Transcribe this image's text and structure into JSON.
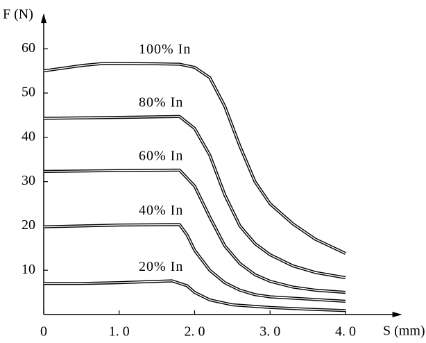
{
  "chart_data": {
    "type": "line",
    "ylabel": "F (N)",
    "xlabel": "S (mm)",
    "xlim": [
      0,
      4.75
    ],
    "ylim": [
      0,
      68
    ],
    "xticks": [
      0,
      {
        "value": 1,
        "label": "1. 0"
      },
      {
        "value": 2,
        "label": "2. 0"
      },
      {
        "value": 3,
        "label": "3. 0"
      },
      {
        "value": 4,
        "label": "4. 0"
      }
    ],
    "yticks": [
      10,
      20,
      30,
      40,
      50,
      60
    ],
    "series": [
      {
        "name": "100% In",
        "color": "#000000",
        "x": [
          0,
          0.5,
          0.8,
          1.5,
          1.8,
          2.0,
          2.2,
          2.4,
          2.6,
          2.8,
          3.0,
          3.3,
          3.6,
          4.0
        ],
        "values": [
          55,
          56.2,
          56.7,
          56.6,
          56.5,
          55.8,
          53.5,
          47,
          38,
          30,
          25,
          20.5,
          17,
          13.8
        ]
      },
      {
        "name": "80% In",
        "color": "#000000",
        "x": [
          0,
          1.0,
          1.8,
          2.0,
          2.2,
          2.4,
          2.6,
          2.8,
          3.0,
          3.3,
          3.6,
          4.0
        ],
        "values": [
          44.3,
          44.5,
          44.7,
          42,
          36,
          27,
          20,
          16,
          13.5,
          11,
          9.5,
          8.3
        ]
      },
      {
        "name": "60% In",
        "color": "#000000",
        "x": [
          0,
          1.0,
          1.8,
          2.0,
          2.2,
          2.4,
          2.6,
          2.8,
          3.0,
          3.3,
          3.6,
          4.0
        ],
        "values": [
          32.3,
          32.5,
          32.6,
          29,
          22,
          15.5,
          11.5,
          9,
          7.5,
          6.2,
          5.5,
          5
        ]
      },
      {
        "name": "40% In",
        "color": "#000000",
        "x": [
          0,
          1.0,
          1.8,
          1.9,
          2.0,
          2.2,
          2.4,
          2.6,
          2.8,
          3.0,
          3.5,
          4.0
        ],
        "values": [
          19.8,
          20.2,
          20.3,
          18,
          14.5,
          10,
          7.2,
          5.5,
          4.5,
          4,
          3.5,
          3
        ]
      },
      {
        "name": "20% In",
        "color": "#000000",
        "x": [
          0,
          0.5,
          1.0,
          1.7,
          1.9,
          2.0,
          2.2,
          2.5,
          3.0,
          3.5,
          4.0
        ],
        "values": [
          7,
          7,
          7.2,
          7.6,
          6.5,
          5,
          3.3,
          2.2,
          1.6,
          1.2,
          0.9
        ]
      }
    ]
  }
}
